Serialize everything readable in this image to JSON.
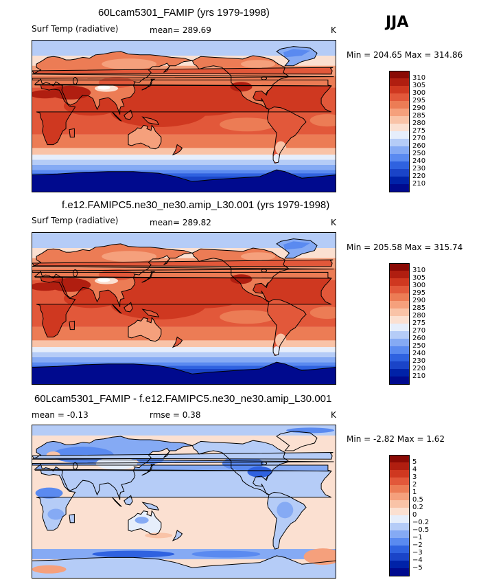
{
  "season": "JJA",
  "units": "K",
  "colors": {
    "abs": [
      "#000a8e",
      "#0022a8",
      "#1a44c8",
      "#2f62e0",
      "#5a8af0",
      "#85aaf4",
      "#b5ccf7",
      "#e6eefb",
      "#fbe0d1",
      "#f9c3a7",
      "#f5a07c",
      "#ec7c55",
      "#e2583a",
      "#cf3820",
      "#b01e10",
      "#8a0a05"
    ],
    "diff": [
      "#000a8e",
      "#0022a8",
      "#1a44c8",
      "#2f62e0",
      "#5a8af0",
      "#85aaf4",
      "#b5ccf7",
      "#e6eefb",
      "#fbe0d1",
      "#f9c3a7",
      "#f5a07c",
      "#ec7c55",
      "#e2583a",
      "#cf3820",
      "#b01e10",
      "#8a0a05"
    ]
  },
  "chart_data": [
    {
      "type": "heatmap",
      "title": "60Lcam5301_FAMIP (yrs 1979-1998)",
      "variable": "Surf Temp (radiative)",
      "mean_text": "mean= 289.69",
      "units": "K",
      "minmax_text": "Min = 204.65 Max = 314.86",
      "min": 204.65,
      "max": 314.86,
      "colorbar_levels": [
        "310",
        "305",
        "300",
        "295",
        "290",
        "285",
        "280",
        "275",
        "270",
        "260",
        "250",
        "240",
        "230",
        "220",
        "210"
      ]
    },
    {
      "type": "heatmap",
      "title": "f.e12.FAMIPC5.ne30_ne30.amip_L30.001 (yrs 1979-1998)",
      "variable": "Surf Temp (radiative)",
      "mean_text": "mean= 289.82",
      "units": "K",
      "minmax_text": "Min = 205.58 Max = 315.74",
      "min": 205.58,
      "max": 315.74,
      "colorbar_levels": [
        "310",
        "305",
        "300",
        "295",
        "290",
        "285",
        "280",
        "275",
        "270",
        "260",
        "250",
        "240",
        "230",
        "220",
        "210"
      ]
    },
    {
      "type": "heatmap",
      "title": "60Lcam5301_FAMIP - f.e12.FAMIPC5.ne30_ne30.amip_L30.001",
      "mean_text": "mean =   -0.13",
      "rmse_text": "rmse =    0.38",
      "units": "K",
      "minmax_text": "Min =   -2.82 Max =    1.62",
      "min": -2.82,
      "max": 1.62,
      "colorbar_levels": [
        "5",
        "4",
        "3",
        "2",
        "1",
        "0.5",
        "0.2",
        "0",
        "−0.2",
        "−0.5",
        "−1",
        "−2",
        "−3",
        "−4",
        "−5"
      ]
    }
  ]
}
